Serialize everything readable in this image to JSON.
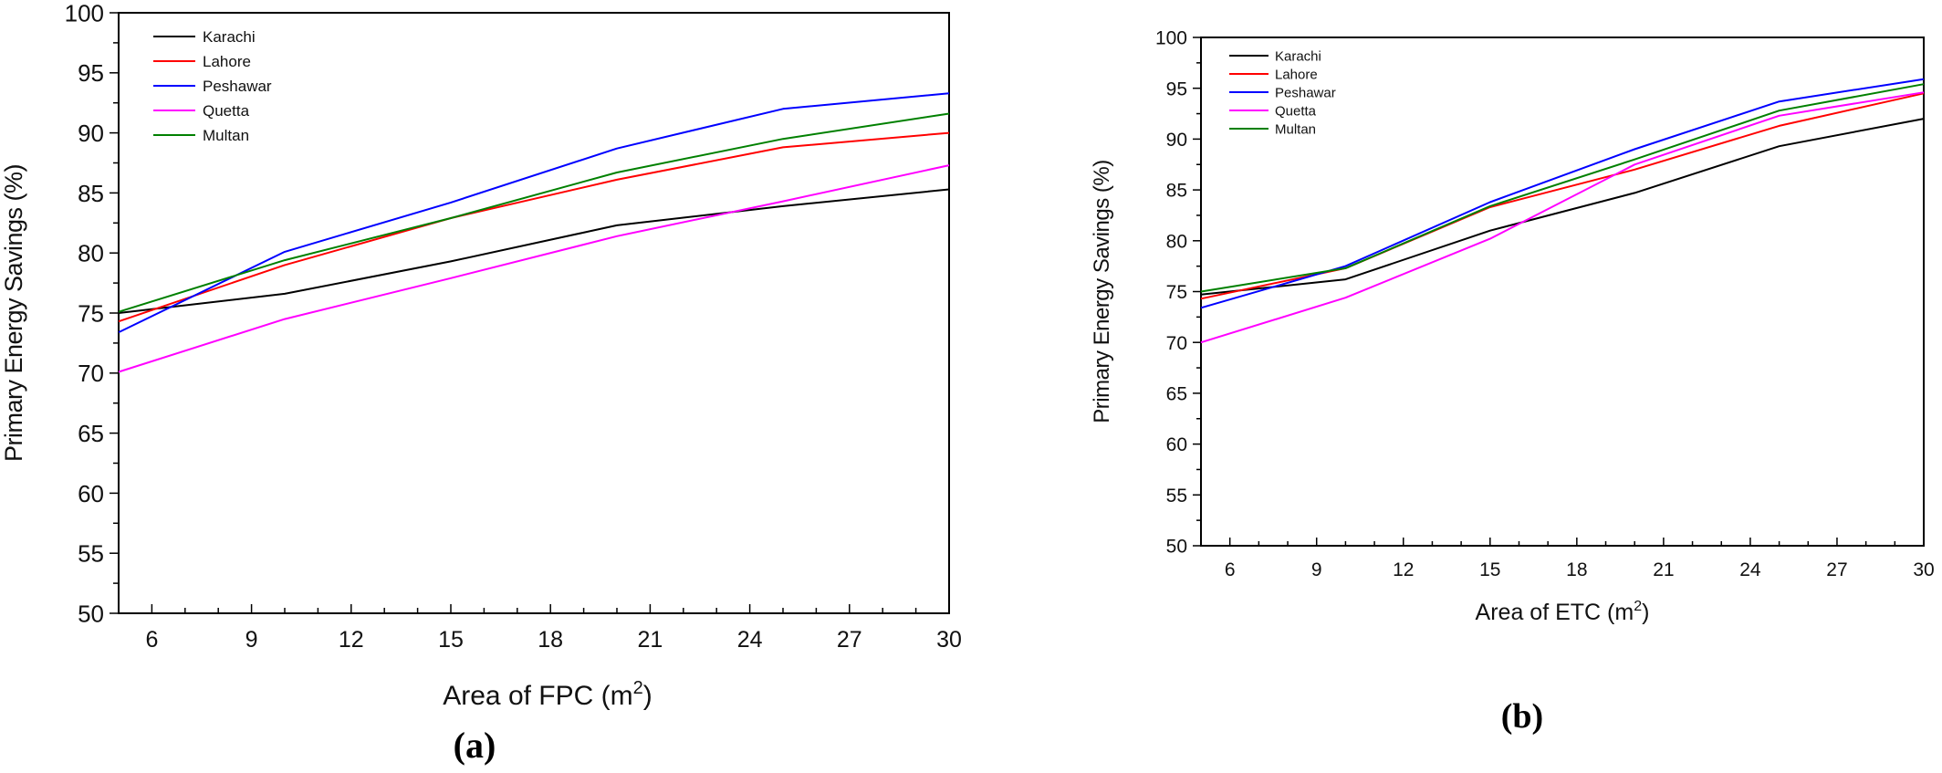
{
  "chart_data": [
    {
      "type": "line",
      "panel_label": "(a)",
      "xlabel_text": "Area of FPC (m",
      "xlabel_sup": "2",
      "xlabel_close": ")",
      "ylabel": "Primary Energy Savings (%)",
      "xlim": [
        5,
        30
      ],
      "ylim": [
        50,
        100
      ],
      "xticks": [
        6,
        9,
        12,
        15,
        18,
        21,
        24,
        27,
        30
      ],
      "yticks": [
        50,
        55,
        60,
        65,
        70,
        75,
        80,
        85,
        90,
        95,
        100
      ],
      "grid": false,
      "legend_position": "top-left",
      "x": [
        5,
        10,
        15,
        20,
        25,
        30
      ],
      "series": [
        {
          "name": "Karachi",
          "color": "#000000",
          "values": [
            75.0,
            76.6,
            79.3,
            82.3,
            83.9,
            85.3
          ]
        },
        {
          "name": "Lahore",
          "color": "#ff0000",
          "values": [
            74.3,
            79.0,
            82.9,
            86.1,
            88.8,
            90.0
          ]
        },
        {
          "name": "Peshawar",
          "color": "#0000ff",
          "values": [
            73.4,
            80.1,
            84.2,
            88.7,
            92.0,
            93.3
          ]
        },
        {
          "name": "Quetta",
          "color": "#ff00ff",
          "values": [
            70.1,
            74.5,
            77.9,
            81.4,
            84.3,
            87.3
          ]
        },
        {
          "name": "Multan",
          "color": "#008000",
          "values": [
            75.1,
            79.4,
            82.9,
            86.7,
            89.5,
            91.6
          ]
        }
      ]
    },
    {
      "type": "line",
      "panel_label": "(b)",
      "xlabel_text": "Area of ETC (m",
      "xlabel_sup": "2",
      "xlabel_close": ")",
      "ylabel": "Primary Energy Savings (%)",
      "xlim": [
        5,
        30
      ],
      "ylim": [
        50,
        100
      ],
      "xticks": [
        6,
        9,
        12,
        15,
        18,
        21,
        24,
        27,
        30
      ],
      "yticks": [
        50,
        55,
        60,
        65,
        70,
        75,
        80,
        85,
        90,
        95,
        100
      ],
      "grid": false,
      "legend_position": "top-left",
      "x": [
        5,
        10,
        15,
        20,
        25,
        30
      ],
      "series": [
        {
          "name": "Karachi",
          "color": "#000000",
          "values": [
            74.7,
            76.2,
            81.0,
            84.7,
            89.3,
            92.0
          ]
        },
        {
          "name": "Lahore",
          "color": "#ff0000",
          "values": [
            74.3,
            77.3,
            83.3,
            87.0,
            91.3,
            94.5
          ]
        },
        {
          "name": "Peshawar",
          "color": "#0000ff",
          "values": [
            73.4,
            77.5,
            83.8,
            89.0,
            93.7,
            95.9
          ]
        },
        {
          "name": "Quetta",
          "color": "#ff00ff",
          "values": [
            70.0,
            74.4,
            80.2,
            87.5,
            92.3,
            94.6
          ]
        },
        {
          "name": "Multan",
          "color": "#008000",
          "values": [
            75.0,
            77.3,
            83.4,
            88.0,
            92.8,
            95.4
          ]
        }
      ]
    }
  ]
}
